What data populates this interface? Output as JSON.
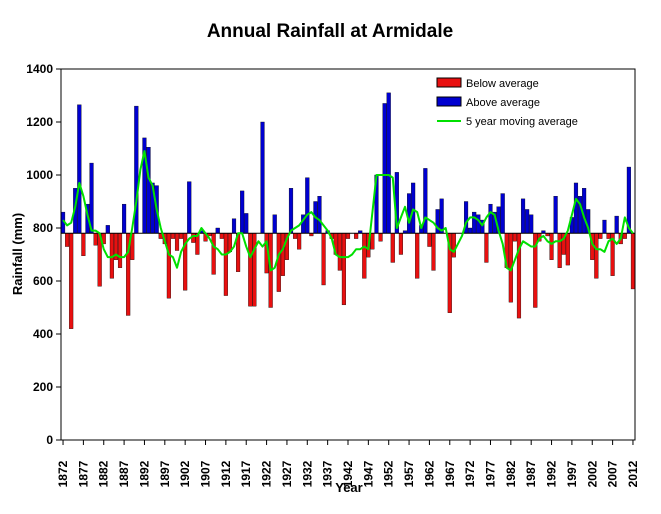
{
  "chart_data": {
    "type": "bar",
    "title": "Annual Rainfall at Armidale",
    "xlabel": "Year",
    "ylabel": "Rainfall (mm)",
    "ylim": [
      0,
      1400
    ],
    "yticks": [
      "0",
      "200",
      "400",
      "600",
      "800",
      "1000",
      "1200",
      "1400"
    ],
    "baseline": 780,
    "x_start": 1872,
    "x_end": 2012,
    "xticks": [
      "1872",
      "1877",
      "1882",
      "1887",
      "1892",
      "1897",
      "1902",
      "1907",
      "1912",
      "1917",
      "1922",
      "1927",
      "1932",
      "1937",
      "1942",
      "1947",
      "1952",
      "1957",
      "1962",
      "1967",
      "1972",
      "1977",
      "1982",
      "1987",
      "1992",
      "1997",
      "2002",
      "2007",
      "2012"
    ],
    "legend": [
      "Below average",
      "Above average",
      "5 year moving average"
    ],
    "legend_position": "top-right",
    "colors": {
      "below": "#e81010",
      "above": "#0000d0",
      "moving_average": "#00e000",
      "baseline": "#000000"
    },
    "rainfall": [
      860,
      730,
      420,
      950,
      1265,
      695,
      890,
      1045,
      735,
      580,
      740,
      810,
      610,
      680,
      650,
      890,
      470,
      680,
      1260,
      780,
      1140,
      1105,
      970,
      960,
      760,
      740,
      535,
      760,
      715,
      760,
      565,
      975,
      745,
      700,
      790,
      750,
      770,
      625,
      800,
      760,
      545,
      710,
      835,
      635,
      940,
      855,
      505,
      505,
      780,
      1200,
      630,
      500,
      850,
      560,
      620,
      680,
      950,
      760,
      720,
      850,
      990,
      770,
      900,
      920,
      585,
      790,
      760,
      700,
      640,
      510,
      760,
      780,
      760,
      790,
      610,
      690,
      720,
      1000,
      750,
      1270,
      1310,
      670,
      1010,
      700,
      790,
      930,
      970,
      610,
      810,
      1025,
      730,
      640,
      870,
      910,
      780,
      480,
      690,
      780,
      780,
      900,
      800,
      860,
      850,
      830,
      670,
      890,
      860,
      880,
      930,
      650,
      520,
      750,
      460,
      910,
      870,
      850,
      500,
      750,
      790,
      770,
      680,
      920,
      650,
      700,
      660,
      840,
      970,
      920,
      950,
      870,
      680,
      610,
      760,
      830,
      760,
      620,
      845,
      740,
      760,
      1030,
      570
    ],
    "moving_average": [
      830,
      810,
      820,
      880,
      970,
      920,
      850,
      790,
      790,
      780,
      720,
      690,
      690,
      700,
      690,
      690,
      710,
      800,
      900,
      1020,
      1090,
      990,
      960,
      870,
      800,
      750,
      700,
      690,
      650,
      710,
      740,
      760,
      770,
      770,
      800,
      780,
      760,
      730,
      720,
      700,
      700,
      710,
      730,
      780,
      780,
      730,
      690,
      720,
      750,
      730,
      750,
      640,
      650,
      700,
      720,
      760,
      790,
      800,
      810,
      830,
      850,
      860,
      840,
      830,
      810,
      790,
      760,
      700,
      690,
      690,
      690,
      700,
      720,
      720,
      730,
      720,
      860,
      1000,
      1000,
      1000,
      1000,
      990,
      800,
      840,
      880,
      820,
      870,
      860,
      800,
      840,
      830,
      820,
      800,
      790,
      800,
      720,
      710,
      740,
      770,
      820,
      840,
      840,
      830,
      810,
      840,
      860,
      850,
      790,
      740,
      650,
      640,
      680,
      720,
      750,
      740,
      730,
      730,
      760,
      770,
      750,
      740,
      750,
      750,
      760,
      790,
      850,
      910,
      890,
      840,
      800,
      740,
      720,
      720,
      710,
      750,
      760,
      740,
      760,
      840,
      800,
      780
    ]
  }
}
